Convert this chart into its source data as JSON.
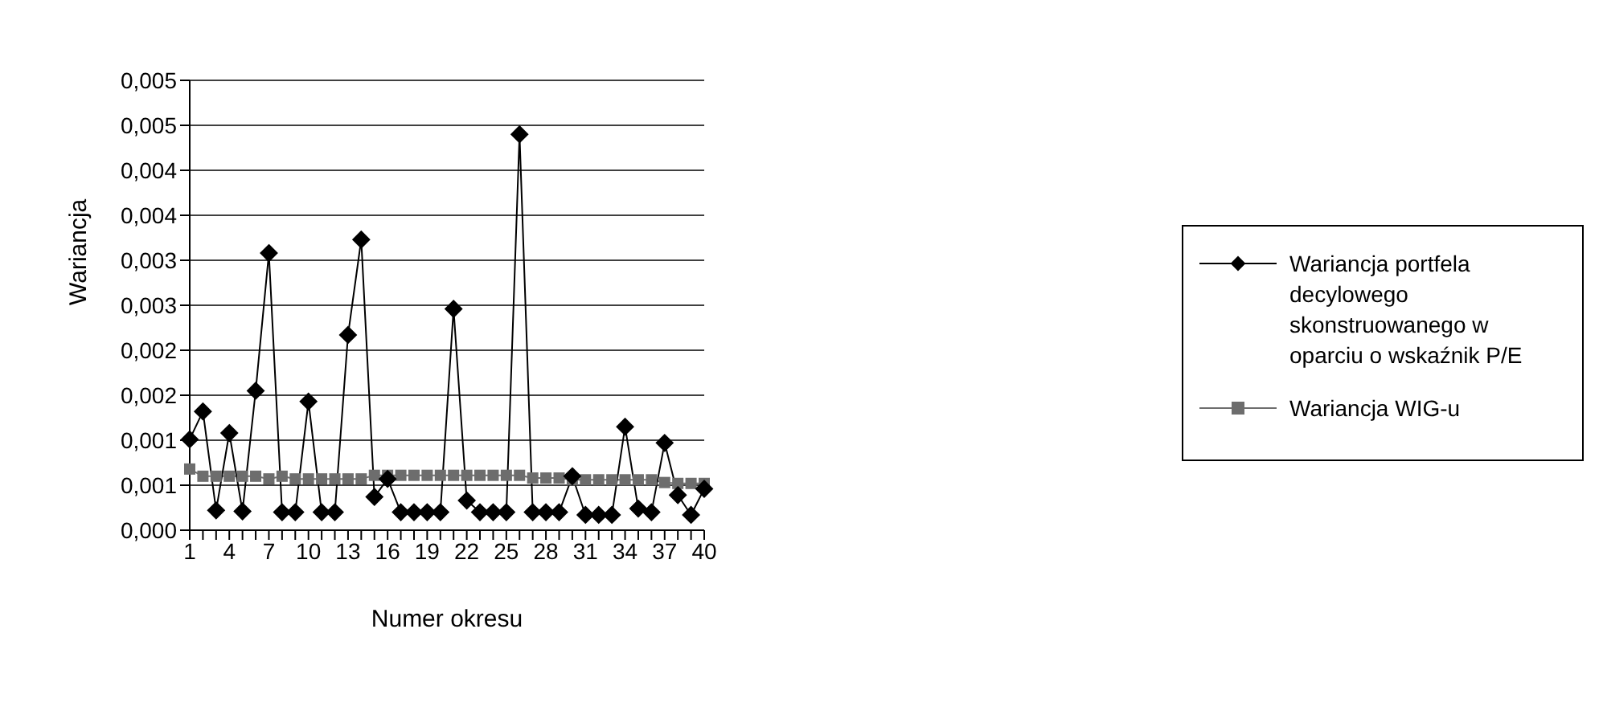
{
  "chart_data": {
    "type": "line",
    "xlabel": "Numer okresu",
    "ylabel": "Wariancja",
    "categories": [
      "1",
      null,
      null,
      "4",
      null,
      null,
      "7",
      null,
      null,
      "10",
      null,
      null,
      "13",
      null,
      null,
      "16",
      null,
      null,
      "19",
      null,
      null,
      "22",
      null,
      null,
      "25",
      null,
      null,
      "28",
      null,
      null,
      "31",
      null,
      null,
      "34",
      null,
      null,
      "37",
      null,
      null,
      "40"
    ],
    "ylim": [
      0,
      0.005
    ],
    "yticks": [
      {
        "value": 0,
        "label": "0,000"
      },
      {
        "value": 0.0005,
        "label": "0,001"
      },
      {
        "value": 0.001,
        "label": "0,001"
      },
      {
        "value": 0.0015,
        "label": "0,002"
      },
      {
        "value": 0.002,
        "label": "0,002"
      },
      {
        "value": 0.0025,
        "label": "0,003"
      },
      {
        "value": 0.003,
        "label": "0,003"
      },
      {
        "value": 0.0035,
        "label": "0,004"
      },
      {
        "value": 0.004,
        "label": "0,004"
      },
      {
        "value": 0.0045,
        "label": "0,005"
      },
      {
        "value": 0.005,
        "label": "0,005"
      }
    ],
    "grid": "y",
    "legend": "right",
    "line_style": "solid",
    "series": [
      {
        "name": "Wariancja portfela decylowego skonstruowanego w oparciu o wskaźnik P/E",
        "color": "#000000",
        "marker": "diamond",
        "values": [
          0.00101,
          0.00132,
          0.00022,
          0.00108,
          0.00021,
          0.00155,
          0.00308,
          0.0002,
          0.0002,
          0.00143,
          0.0002,
          0.0002,
          0.00217,
          0.00323,
          0.00037,
          0.00057,
          0.0002,
          0.0002,
          0.0002,
          0.0002,
          0.00246,
          0.00033,
          0.0002,
          0.0002,
          0.0002,
          0.0044,
          0.0002,
          0.0002,
          0.0002,
          0.0006,
          0.00017,
          0.00017,
          0.00017,
          0.00115,
          0.00024,
          0.0002,
          0.00097,
          0.00039,
          0.00017,
          0.00046
        ]
      },
      {
        "name": "Wariancja WIG-u",
        "color": "#6d6d6d",
        "marker": "square",
        "values": [
          0.00068,
          0.0006,
          0.0006,
          0.0006,
          0.0006,
          0.0006,
          0.00057,
          0.0006,
          0.00057,
          0.00057,
          0.00057,
          0.00057,
          0.00057,
          0.00057,
          0.00061,
          0.00061,
          0.00061,
          0.00061,
          0.00061,
          0.00061,
          0.00061,
          0.00061,
          0.00061,
          0.00061,
          0.00061,
          0.00061,
          0.00058,
          0.00058,
          0.00058,
          0.00056,
          0.00056,
          0.00056,
          0.00056,
          0.00056,
          0.00056,
          0.00056,
          0.00053,
          0.00052,
          0.00052,
          0.00052
        ]
      }
    ]
  }
}
